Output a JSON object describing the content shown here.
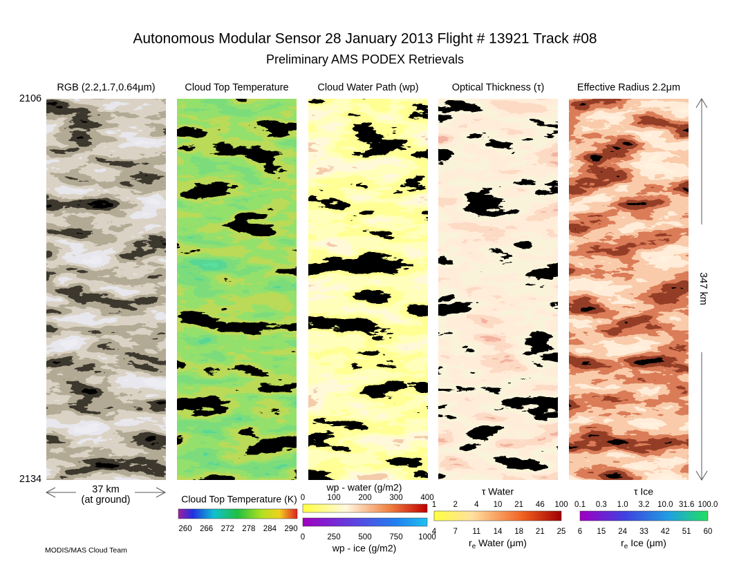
{
  "header": {
    "title": "Autonomous Modular Sensor  28 January 2013  Flight # 13921 Track #08",
    "subtitle": "Preliminary AMS PODEX Retrievals"
  },
  "panels": [
    {
      "label": "RGB (2.2,1.7,0.64μm)"
    },
    {
      "label": "Cloud Top Temperature"
    },
    {
      "label": "Cloud Water Path (wp)"
    },
    {
      "label": "Optical Thickness (τ)"
    },
    {
      "label": "Effective Radius 2.2μm"
    }
  ],
  "scan_start": "2106",
  "scan_end": "2134",
  "width_label": "37 km",
  "width_note": "(at ground)",
  "length_label": "347 km",
  "colorbars": {
    "temperature": {
      "label": "Cloud Top Temperature (K)",
      "ticks": [
        "260",
        "266",
        "272",
        "278",
        "284",
        "290"
      ]
    },
    "wp_water": {
      "label": "wp - water (g/m2)",
      "ticks": [
        "0",
        "100",
        "200",
        "300",
        "400"
      ]
    },
    "wp_ice": {
      "label": "wp - ice (g/m2)",
      "ticks": [
        "0",
        "250",
        "500",
        "750",
        "1000"
      ]
    },
    "tau_water": {
      "label": "τ Water",
      "ticks": [
        "1",
        "2",
        "4",
        "10",
        "21",
        "46",
        "100"
      ]
    },
    "re_water": {
      "symbol": "r",
      "subscript": "e",
      "text": " Water (μm)",
      "ticks": [
        "4",
        "7",
        "11",
        "14",
        "18",
        "21",
        "25"
      ]
    },
    "tau_ice": {
      "label": "τ Ice",
      "ticks": [
        "0.1",
        "0.3",
        "1.0",
        "3.2",
        "10.0",
        "31.6",
        "100.0"
      ]
    },
    "re_ice": {
      "symbol": "r",
      "subscript": "e",
      "text": " Ice (μm)",
      "ticks": [
        "6",
        "15",
        "24",
        "33",
        "42",
        "51",
        "60"
      ]
    }
  },
  "credit": "MODIS/MAS Cloud Team"
}
